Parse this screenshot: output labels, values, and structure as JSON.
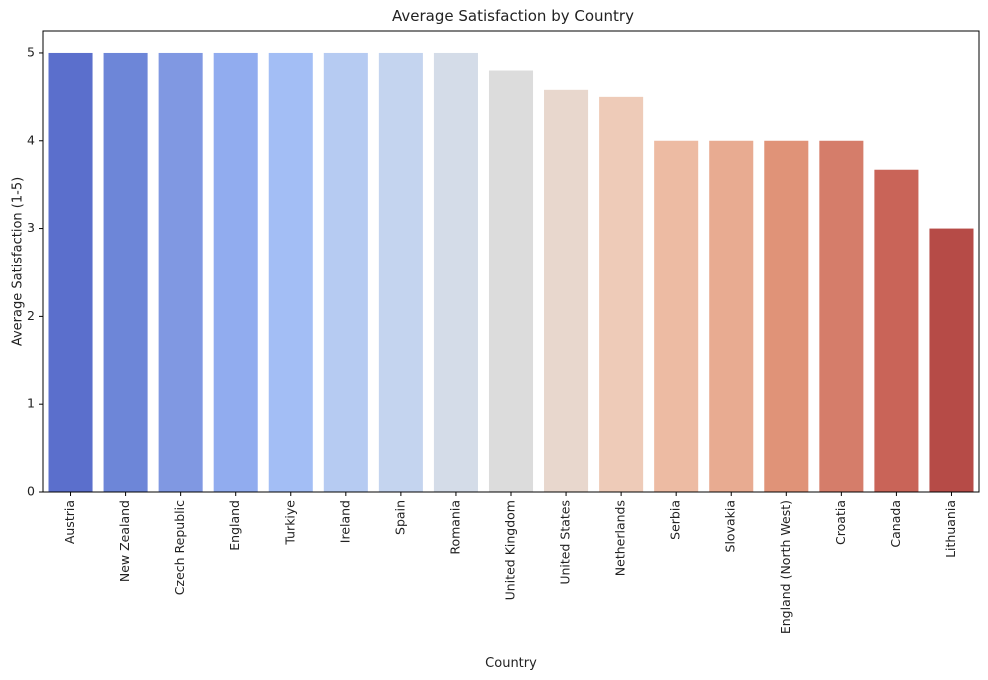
{
  "chart_data": {
    "type": "bar",
    "title": "Average Satisfaction by Country",
    "xlabel": "Country",
    "ylabel": "Average Satisfaction (1-5)",
    "ylim": [
      0,
      5.25
    ],
    "yticks": [
      0,
      1,
      2,
      3,
      4,
      5
    ],
    "grid": false,
    "categories": [
      "Austria",
      "New Zealand",
      "Czech Republic",
      "England",
      "Turkiye",
      "Ireland",
      "Spain",
      "Romania",
      "United Kingdom",
      "United States",
      "Netherlands",
      "Serbia",
      "Slovakia",
      "England (North West)",
      "Croatia",
      "Canada",
      "Lithuania"
    ],
    "values": [
      5,
      5,
      5,
      5,
      5,
      5,
      5,
      5,
      4.8,
      4.58,
      4.5,
      4,
      4,
      4,
      4,
      3.67,
      3
    ],
    "colors": [
      "#5b6fcc",
      "#6d86d8",
      "#8098e2",
      "#91acef",
      "#a3bef5",
      "#b6cbf2",
      "#c4d4ef",
      "#d4dce8",
      "#dcdcdc",
      "#e8d7cd",
      "#eecbb8",
      "#edbba3",
      "#e8ab91",
      "#e09378",
      "#d57d6a",
      "#c96458",
      "#b64b47"
    ]
  }
}
